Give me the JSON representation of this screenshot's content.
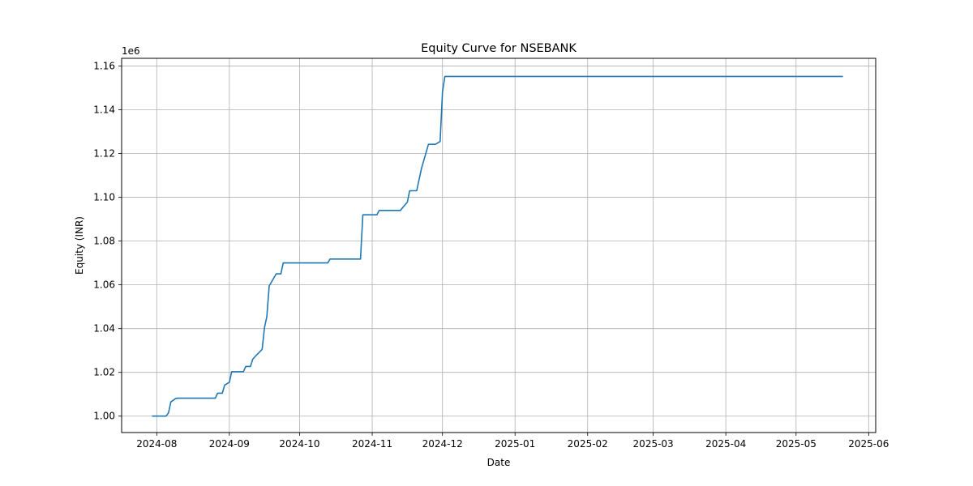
{
  "chart_data": {
    "type": "line",
    "title": "Equity Curve for NSEBANK",
    "xlabel": "Date",
    "ylabel": "Equity (INR)",
    "y_offset_label": "1e6",
    "grid": true,
    "x_tick_labels": [
      "2024-08",
      "2024-09",
      "2024-10",
      "2024-11",
      "2024-12",
      "2025-01",
      "2025-02",
      "2025-03",
      "2025-04",
      "2025-05",
      "2025-06"
    ],
    "x_ticks": [
      "2024-08-01",
      "2024-09-01",
      "2024-10-01",
      "2024-11-01",
      "2024-12-01",
      "2025-01-01",
      "2025-02-01",
      "2025-03-01",
      "2025-04-01",
      "2025-05-01",
      "2025-06-01"
    ],
    "xlim": [
      "2024-07-17",
      "2025-06-04"
    ],
    "y_ticks": [
      1.0,
      1.02,
      1.04,
      1.06,
      1.08,
      1.1,
      1.12,
      1.14,
      1.16
    ],
    "y_tick_labels": [
      "1.00",
      "1.02",
      "1.04",
      "1.06",
      "1.08",
      "1.10",
      "1.12",
      "1.14",
      "1.16"
    ],
    "ylim": [
      0.9925,
      1.1635
    ],
    "series": [
      {
        "color": "#1f77b4",
        "x": [
          "2024-07-30",
          "2024-08-05",
          "2024-08-06",
          "2024-08-07",
          "2024-08-09",
          "2024-08-10",
          "2024-08-26",
          "2024-08-27",
          "2024-08-29",
          "2024-08-30",
          "2024-09-01",
          "2024-09-02",
          "2024-09-07",
          "2024-09-08",
          "2024-09-10",
          "2024-09-11",
          "2024-09-12",
          "2024-09-15",
          "2024-09-16",
          "2024-09-17",
          "2024-09-18",
          "2024-09-21",
          "2024-09-23",
          "2024-09-24",
          "2024-10-13",
          "2024-10-14",
          "2024-10-27",
          "2024-10-28",
          "2024-11-03",
          "2024-11-04",
          "2024-11-13",
          "2024-11-16",
          "2024-11-17",
          "2024-11-20",
          "2024-11-22",
          "2024-11-25",
          "2024-11-28",
          "2024-11-30",
          "2024-12-01",
          "2024-12-02",
          "2025-05-21"
        ],
        "y": [
          1.0,
          1.0,
          1.0015,
          1.0065,
          1.008,
          1.0082,
          1.0082,
          1.0105,
          1.0105,
          1.0142,
          1.0155,
          1.0203,
          1.0203,
          1.0227,
          1.0227,
          1.026,
          1.0272,
          1.0305,
          1.0405,
          1.0455,
          1.0595,
          1.065,
          1.065,
          1.07,
          1.07,
          1.0718,
          1.0718,
          1.092,
          1.092,
          1.094,
          1.094,
          1.0978,
          1.103,
          1.103,
          1.113,
          1.1242,
          1.1242,
          1.1255,
          1.148,
          1.1552,
          1.1552
        ]
      }
    ]
  }
}
